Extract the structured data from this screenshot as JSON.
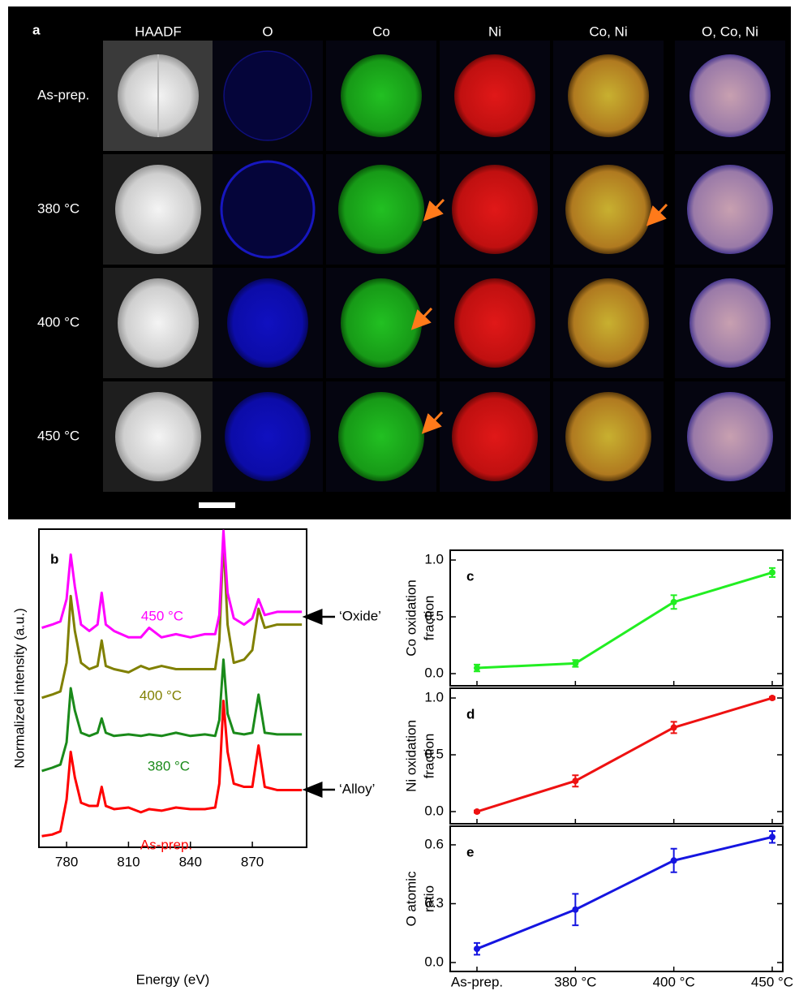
{
  "panel_a": {
    "label": "a",
    "columns": [
      "HAADF",
      "O",
      "Co",
      "Ni",
      "Co, Ni",
      "O, Co, Ni"
    ],
    "rows": [
      "As-prep.",
      "380 °C",
      "400 °C",
      "450 °C"
    ]
  },
  "chart_data": [
    {
      "type": "line",
      "label": "b",
      "xlabel": "Energy (eV)",
      "ylabel": "Normalized intensity (a.u.)",
      "x": [
        768,
        773,
        777,
        780,
        782,
        784,
        787,
        791,
        795,
        797,
        799,
        803,
        810,
        816,
        820,
        826,
        833,
        840,
        847,
        852,
        854,
        856,
        858,
        861,
        866,
        870,
        873,
        876,
        882,
        894
      ],
      "xlim": [
        766.6,
        896.3
      ],
      "xticks": [
        780,
        810,
        840,
        870
      ],
      "ylim": [
        0,
        10
      ],
      "series": [
        {
          "name": "As-prep.",
          "color": "#ff0000",
          "values": [
            0.35,
            0.4,
            0.5,
            1.5,
            3.0,
            2.2,
            1.4,
            1.3,
            1.3,
            1.9,
            1.3,
            1.2,
            1.25,
            1.1,
            1.2,
            1.15,
            1.25,
            1.2,
            1.2,
            1.25,
            2.0,
            4.6,
            3.0,
            2.0,
            1.9,
            1.9,
            3.2,
            1.9,
            1.8,
            1.8
          ]
        },
        {
          "name": "380 °C",
          "color": "#1a8a1a",
          "values": [
            2.4,
            2.5,
            2.6,
            3.3,
            5.0,
            4.3,
            3.6,
            3.5,
            3.6,
            4.05,
            3.6,
            3.5,
            3.55,
            3.5,
            3.55,
            3.5,
            3.6,
            3.5,
            3.55,
            3.5,
            4.0,
            5.9,
            4.2,
            3.6,
            3.55,
            3.6,
            4.8,
            3.6,
            3.55,
            3.55
          ]
        },
        {
          "name": "400 °C",
          "color": "#808000",
          "values": [
            4.7,
            4.8,
            4.9,
            5.8,
            7.9,
            6.8,
            5.8,
            5.6,
            5.7,
            6.5,
            5.7,
            5.6,
            5.5,
            5.7,
            5.6,
            5.7,
            5.6,
            5.6,
            5.6,
            5.6,
            6.5,
            9.7,
            7.0,
            5.8,
            5.9,
            6.2,
            7.5,
            6.9,
            7.0,
            7.0
          ]
        },
        {
          "name": "450 °C",
          "color": "#ff00ff",
          "values": [
            6.9,
            7.0,
            7.1,
            7.8,
            9.2,
            8.2,
            7.0,
            6.8,
            7.0,
            8.0,
            7.0,
            6.8,
            6.6,
            6.6,
            6.9,
            6.6,
            6.7,
            6.6,
            6.7,
            6.7,
            7.3,
            9.95,
            8.0,
            7.2,
            7.0,
            7.2,
            7.8,
            7.3,
            7.4,
            7.4
          ]
        }
      ],
      "annotations": [
        "‘Oxide’",
        "‘Alloy’"
      ]
    },
    {
      "type": "errorline",
      "label": "c",
      "ylabel": [
        "Co oxidation",
        "fraction"
      ],
      "categories": [
        "As-prep.",
        "380 °C",
        "400 °C",
        "450 °C"
      ],
      "values": [
        0.05,
        0.09,
        0.63,
        0.89
      ],
      "errors": [
        0.03,
        0.03,
        0.06,
        0.04
      ],
      "color": "#22ee22",
      "ylim": [
        -0.107,
        1.086
      ],
      "yticks": [
        {
          "value": 0,
          "label": "0.0"
        },
        0.5,
        {
          "value": 1,
          "label": "1.0"
        }
      ]
    },
    {
      "type": "errorline",
      "label": "d",
      "ylabel": [
        "Ni oxidation",
        "fraction"
      ],
      "categories": [
        "As-prep.",
        "380 °C",
        "400 °C",
        "450 °C"
      ],
      "values": [
        0.0,
        0.27,
        0.74,
        1.0
      ],
      "errors": [
        0.01,
        0.05,
        0.05,
        0.01
      ],
      "color": "#ee1111",
      "ylim": [
        -0.107,
        1.086
      ],
      "yticks": [
        {
          "value": 0,
          "label": "0.0"
        },
        0.5,
        {
          "value": 1,
          "label": "1.0"
        }
      ]
    },
    {
      "type": "errorline",
      "label": "e",
      "ylabel": [
        "O atomic",
        "ratio"
      ],
      "categories": [
        "As-prep.",
        "380 °C",
        "400 °C",
        "450 °C"
      ],
      "values": [
        0.07,
        0.27,
        0.52,
        0.64
      ],
      "errors": [
        0.03,
        0.08,
        0.06,
        0.03
      ],
      "color": "#1515e0",
      "ylim": [
        -0.0455,
        0.695
      ],
      "yticks": [
        {
          "value": 0,
          "label": "0.0"
        },
        0.3,
        0.6
      ]
    }
  ]
}
